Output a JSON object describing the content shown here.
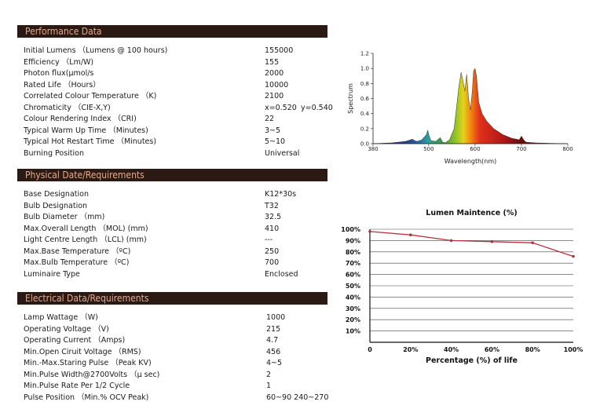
{
  "performance": {
    "title": "Performance Data",
    "rows": [
      {
        "label": "Initial Lumens （Lumens @ 100 hours)",
        "value": "155000"
      },
      {
        "label": "Efficiency （Lm/W)",
        "value": "155"
      },
      {
        "label": "Photon flux(μmol/s",
        "value": "2000"
      },
      {
        "label": "Rated Life （Hours）",
        "value": "10000"
      },
      {
        "label": "Correlated Colour Temperature （K)",
        "value": "2100"
      },
      {
        "label": "Chromaticity （CIE-X,Y)",
        "value": "x=0.520",
        "value2": "y=0.540"
      },
      {
        "label": "Colour Rendering Index （CRI)",
        "value": "22"
      },
      {
        "label": "Typical Warm Up Time （Minutes)",
        "value": "3~5"
      },
      {
        "label": "Typical Hot Restart Time （Minutes)",
        "value": "5~10"
      },
      {
        "label": "Burning Position",
        "value": "Universal"
      }
    ]
  },
  "physical": {
    "title": "Physical Date/Requirements",
    "rows": [
      {
        "label": "Base Designation",
        "value": "K12*30s"
      },
      {
        "label": "Bulb Designation",
        "value": "T32"
      },
      {
        "label": "Bulb Diameter （mm)",
        "value": "32.5"
      },
      {
        "label": "Max.Overall Length （MOL)     (mm)",
        "value": "410"
      },
      {
        "label": "Light Centre Length （LCL)     (mm)",
        "value": "---"
      },
      {
        "label": "Max.Base Temperature （ºC)",
        "value": "250"
      },
      {
        "label": "Max.Bulb Temperature （ºC)",
        "value": "700"
      },
      {
        "label": "Luminaire Type",
        "value": "Enclosed"
      }
    ]
  },
  "electrical": {
    "title": "Electrical Data/Requirements",
    "rows": [
      {
        "label": "Lamp Wattage （W)",
        "value": "1000"
      },
      {
        "label": "Operating Voltage （V)",
        "value": "215"
      },
      {
        "label": "Operating Current （Amps)",
        "value": "4.7"
      },
      {
        "label": "Min.Open Ciruit Voltage （RMS)",
        "value": "456"
      },
      {
        "label": "Min.-Max.Staring Pulse （Peak KV)",
        "value": "4~5"
      },
      {
        "label": "Min.Pulse Width@2700Volts （μ sec)",
        "value": "2"
      },
      {
        "label": "Min.Pulse Rate Per 1/2 Cycle",
        "value": "1"
      },
      {
        "label": "Pulse Position （Min.% OCV Peak)",
        "value": "60~90   240~270"
      }
    ]
  },
  "chart_data": [
    {
      "type": "area",
      "title": "",
      "xlabel": "Wavelength(nm)",
      "ylabel": "Spectrum",
      "xlim": [
        380,
        800
      ],
      "ylim": [
        0,
        1.2
      ],
      "x_ticks": [
        "380",
        "500",
        "600",
        "700",
        "800"
      ],
      "x_tick_values": [
        380,
        500,
        600,
        700,
        800
      ],
      "y_ticks": [
        "0.0",
        "0.2",
        "0.4",
        "0.6",
        "0.8",
        "1.0",
        "1.2"
      ],
      "y_tick_values": [
        0,
        0.2,
        0.4,
        0.6,
        0.8,
        1.0,
        1.2
      ],
      "x": [
        380,
        420,
        450,
        465,
        470,
        475,
        485,
        495,
        498,
        500,
        505,
        515,
        525,
        530,
        535,
        545,
        555,
        565,
        570,
        575,
        578,
        582,
        586,
        590,
        594,
        597,
        600,
        603,
        608,
        615,
        625,
        640,
        660,
        680,
        690,
        695,
        700,
        705,
        710,
        730,
        760,
        800
      ],
      "values": [
        0,
        0.01,
        0.03,
        0.06,
        0.04,
        0.03,
        0.05,
        0.12,
        0.18,
        0.12,
        0.04,
        0.03,
        0.08,
        0.02,
        0.01,
        0.05,
        0.2,
        0.75,
        0.95,
        0.8,
        0.7,
        0.92,
        0.6,
        0.45,
        0.7,
        0.97,
        1.0,
        0.9,
        0.55,
        0.4,
        0.3,
        0.2,
        0.12,
        0.07,
        0.06,
        0.05,
        0.1,
        0.05,
        0.02,
        0.01,
        0.005,
        0
      ]
    },
    {
      "type": "line",
      "title": "Lumen Maintence (%)",
      "xlabel": "Percentage (%) of life",
      "ylabel": "",
      "x_ticks": [
        "0",
        "20%",
        "40%",
        "60%",
        "80%",
        "100%"
      ],
      "x_tick_values": [
        0,
        20,
        40,
        60,
        80,
        100
      ],
      "y_ticks": [
        "100%",
        "90%",
        "80%",
        "70%",
        "60%",
        "50%",
        "40%",
        "30%",
        "20%",
        "10%"
      ],
      "y_tick_values": [
        100,
        90,
        80,
        70,
        60,
        50,
        40,
        30,
        20,
        10
      ],
      "xlim": [
        0,
        100
      ],
      "ylim": [
        0,
        100
      ],
      "series": [
        {
          "name": "Lumen Maintenance",
          "x": [
            0,
            20,
            40,
            60,
            80,
            100
          ],
          "values": [
            98,
            95,
            90,
            89,
            88,
            76
          ]
        }
      ],
      "line_color": "#b8323e"
    }
  ]
}
